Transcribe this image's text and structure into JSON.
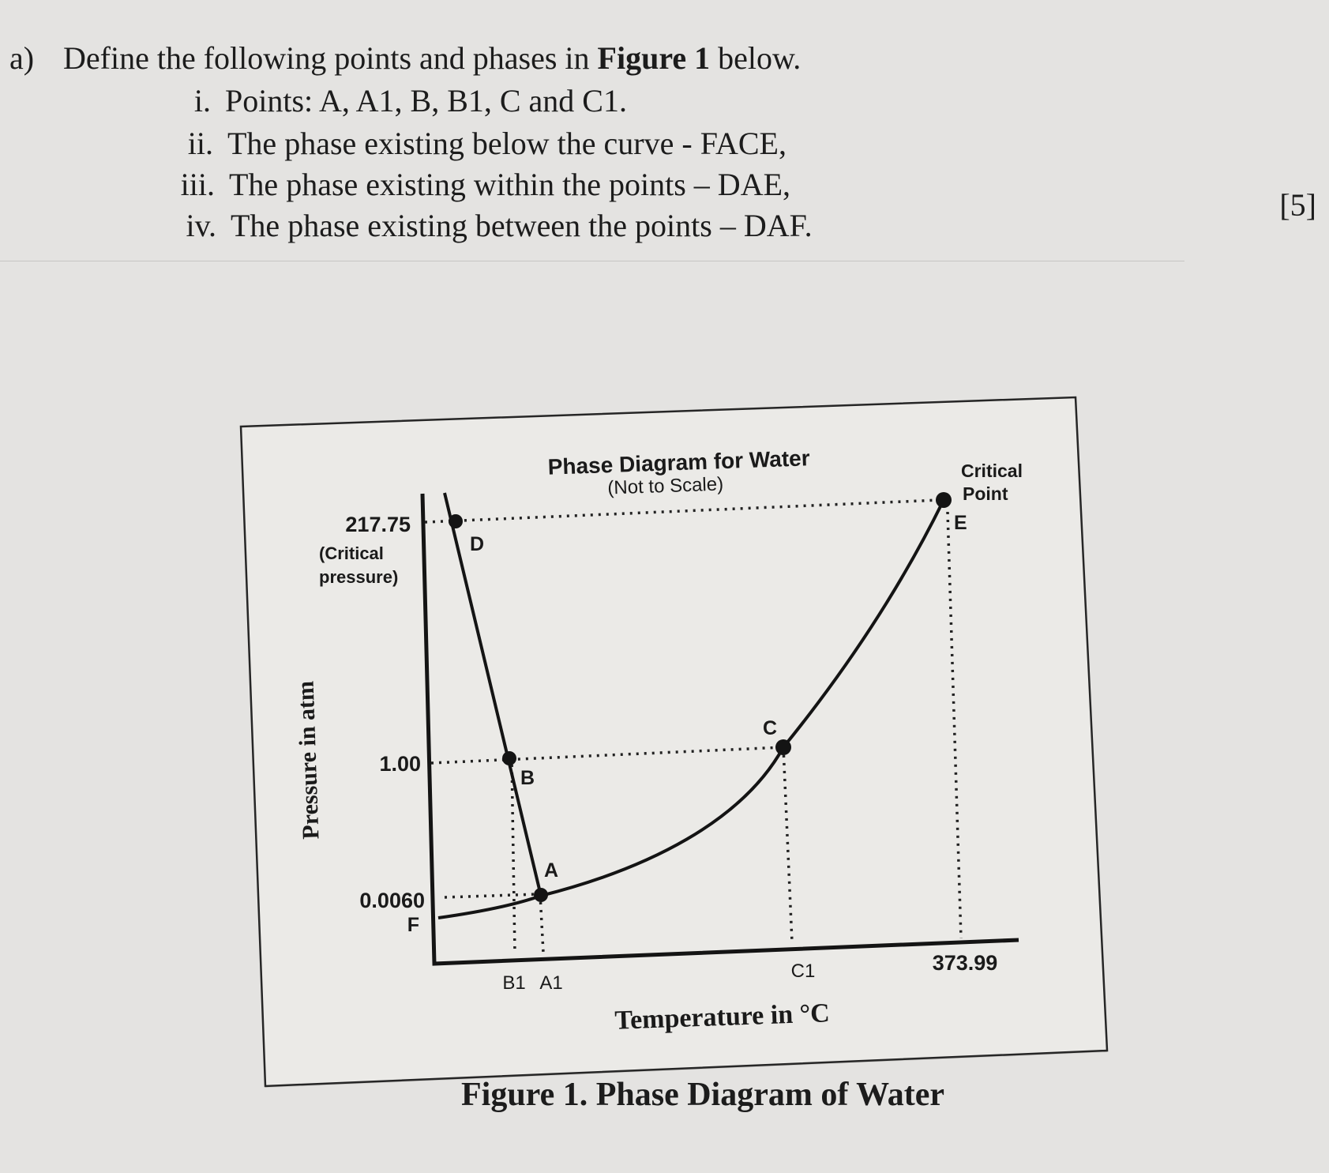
{
  "question": {
    "label": "a)",
    "intro": "Define the following points and phases in ",
    "figure_ref": "Figure 1",
    "intro_end": " below.",
    "items": [
      {
        "num": "i.",
        "text": "Points: A, A1, B, B1, C and C1."
      },
      {
        "num": "ii.",
        "text": "The phase existing below the curve - FACE,"
      },
      {
        "num": "iii.",
        "text": "The phase existing within the points – DAE,"
      },
      {
        "num": "iv.",
        "text": "The phase existing between the points – DAF."
      }
    ],
    "marks": "[5]"
  },
  "diagram": {
    "title": "Phase Diagram for Water",
    "subtitle": "(Not to Scale)",
    "y_axis_label": "Pressure in atm",
    "x_axis_label": "Temperature in °C",
    "y_ticks": {
      "critical_pressure": "217.75",
      "critical_pressure_note_1": "(Critical",
      "critical_pressure_note_2": "pressure)",
      "one_atm": "1.00",
      "triple_pressure": "0.0060"
    },
    "x_ticks": {
      "b1": "B1",
      "a1": "A1",
      "c1": "C1",
      "critical_temp": "373.99"
    },
    "points": {
      "a": "A",
      "b": "B",
      "c": "C",
      "d": "D",
      "e": "E",
      "f": "F"
    },
    "critical_point_label_1": "Critical",
    "critical_point_label_2": "Point"
  },
  "caption": "Figure 1. Phase Diagram of Water"
}
